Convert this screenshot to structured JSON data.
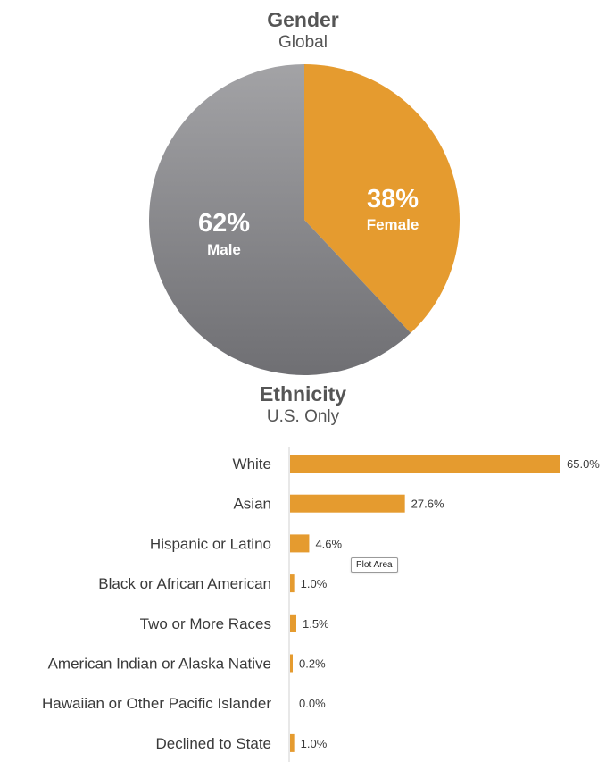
{
  "colors": {
    "female": "#e59b2f",
    "male_light": "#a3a3a6",
    "male_dark": "#6f6f73",
    "bar": "#e59b2f",
    "axis": "#d0d0d0",
    "label_text": "#3a3a3a",
    "pie_label": "#ffffff"
  },
  "tooltip": {
    "text": "Plot Area"
  },
  "chart_data": [
    {
      "type": "pie",
      "title": "Gender",
      "subtitle": "Global",
      "slices": [
        {
          "name": "Female",
          "value": 38,
          "label": "38%"
        },
        {
          "name": "Male",
          "value": 62,
          "label": "62%"
        }
      ]
    },
    {
      "type": "bar",
      "orientation": "horizontal",
      "title": "Ethnicity",
      "subtitle": "U.S. Only",
      "categories": [
        "White",
        "Asian",
        "Hispanic or Latino",
        "Black or African American",
        "Two or More Races",
        "American Indian or Alaska Native",
        "Hawaiian or Other Pacific Islander",
        "Declined to State"
      ],
      "values": [
        65.0,
        27.6,
        4.6,
        1.0,
        1.5,
        0.2,
        0.0,
        1.0
      ],
      "value_labels": [
        "65.0%",
        "27.6%",
        "4.6%",
        "1.0%",
        "1.5%",
        "0.2%",
        "0.0%",
        "1.0%"
      ],
      "xlim": [
        0,
        65.0
      ],
      "grid": false
    }
  ]
}
